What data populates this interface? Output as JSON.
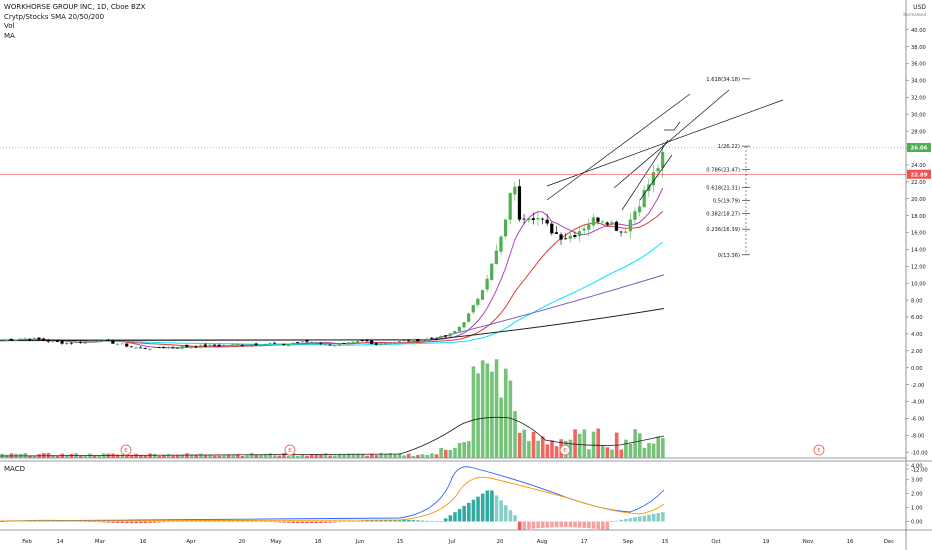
{
  "legend": {
    "symbol": "WORKHORSE GROUP INC, 1D, Cboe BZX",
    "sma": "Crytp/Stocks SMA 20/50/200",
    "vol": "Vol",
    "ma": "MA"
  },
  "macd_label": "MACD",
  "currency": "USD",
  "currency_sub": "Normalised",
  "chart_data": {
    "type": "candlestick",
    "price_axis": {
      "ticks": [
        "40.00",
        "38.00",
        "36.00",
        "34.00",
        "32.00",
        "30.00",
        "28.00",
        "26.00",
        "24.00",
        "22.00",
        "20.00",
        "18.00",
        "16.00",
        "14.00",
        "12.00",
        "10.00",
        "8.00",
        "6.00",
        "4.00",
        "2.00",
        "0.00",
        "-2.00",
        "-4.00",
        "-6.00",
        "-8.00",
        "-10.00",
        "-12.00"
      ],
      "range": [
        -12,
        40
      ],
      "last_price": "26.06",
      "red_line_price": "22.89",
      "red_line_value": 22.89,
      "last_value": 26.06
    },
    "macd_axis": {
      "ticks": [
        "4.00",
        "3.00",
        "2.00",
        "1.00",
        "0.00"
      ],
      "range": [
        -0.5,
        4.2
      ]
    },
    "time_axis": [
      "Feb",
      "14",
      "Mar",
      "16",
      "Apr",
      "20",
      "May",
      "18",
      "Jun",
      "15",
      "Jul",
      "20",
      "Aug",
      "17",
      "Sep",
      "15",
      "Oct",
      "19",
      "Nov",
      "16",
      "Dec"
    ],
    "fibonacci": [
      {
        "label": "1.618(34.18)",
        "value": 34.18
      },
      {
        "label": "1(26.22)",
        "value": 26.22
      },
      {
        "label": "0.786(23.47)",
        "value": 23.47
      },
      {
        "label": "0.618(21.31)",
        "value": 21.31
      },
      {
        "label": "0.5(19.79)",
        "value": 19.79
      },
      {
        "label": "0.382(18.27)",
        "value": 18.27
      },
      {
        "label": "0.236(16.39)",
        "value": 16.39
      },
      {
        "label": "0(13.36)",
        "value": 13.36
      }
    ],
    "earnings_marker": "E",
    "colors": {
      "up": "#26a69a",
      "down": "#ef5350",
      "candle_up": "#4caf50",
      "candle_down": "#000000",
      "vol_up": "#66bb6a",
      "vol_down": "#ef5350",
      "sma20": "#e53935",
      "sma50": "#00e5ff",
      "sma200": "#7e57c2",
      "ma_black": "#212121",
      "ma_purple": "#ab47bc",
      "macd_line": "#2962ff",
      "signal_line": "#ff9800",
      "last_price_bg": "#4caf50",
      "red_line_bg": "#ef5350"
    }
  }
}
